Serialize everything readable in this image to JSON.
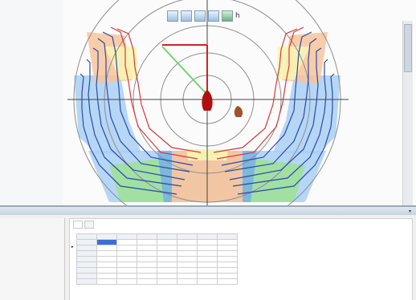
{
  "toolbar": {
    "buttons": [
      "zoom-button",
      "layers-button",
      "grid-button",
      "chart-button",
      "view-button",
      "settings-button"
    ],
    "extra_label": "h"
  },
  "colors": {
    "ring": "#9a9a9a",
    "band_blue": "#a9cff5",
    "band_orange": "#f8c49a",
    "band_green": "#9fe09a",
    "band_yellow": "#f7f4b3",
    "curve_red": "#d43a3a",
    "curve_blue": "#2a4aa8",
    "boat": "#b01010",
    "wind_green": "#72d372",
    "wind_red": "#d42020"
  },
  "bottom": {
    "panel_title": "",
    "tabs": [
      "",
      ""
    ],
    "table": {
      "headers": [
        "",
        "",
        "",
        "",
        "",
        "",
        "",
        ""
      ],
      "rows": [
        {
          "name": "",
          "cells": [
            "",
            "",
            "",
            "",
            "",
            "",
            ""
          ]
        },
        {
          "name": "",
          "cells": [
            "",
            "",
            "",
            "",
            "",
            "",
            ""
          ]
        },
        {
          "name": "",
          "cells": [
            "",
            "",
            "",
            "",
            "",
            "",
            ""
          ]
        },
        {
          "name": "",
          "cells": [
            "",
            "",
            "",
            "",
            "",
            "",
            ""
          ]
        },
        {
          "name": "",
          "cells": [
            "",
            "",
            "",
            "",
            "",
            "",
            ""
          ]
        },
        {
          "name": "",
          "cells": [
            "",
            "",
            "",
            "",
            "",
            "",
            ""
          ]
        },
        {
          "name": "",
          "cells": [
            "",
            "",
            "",
            "",
            "",
            "",
            ""
          ]
        },
        {
          "name": "",
          "cells": [
            "",
            "",
            "",
            "",
            "",
            "",
            ""
          ]
        }
      ]
    }
  }
}
